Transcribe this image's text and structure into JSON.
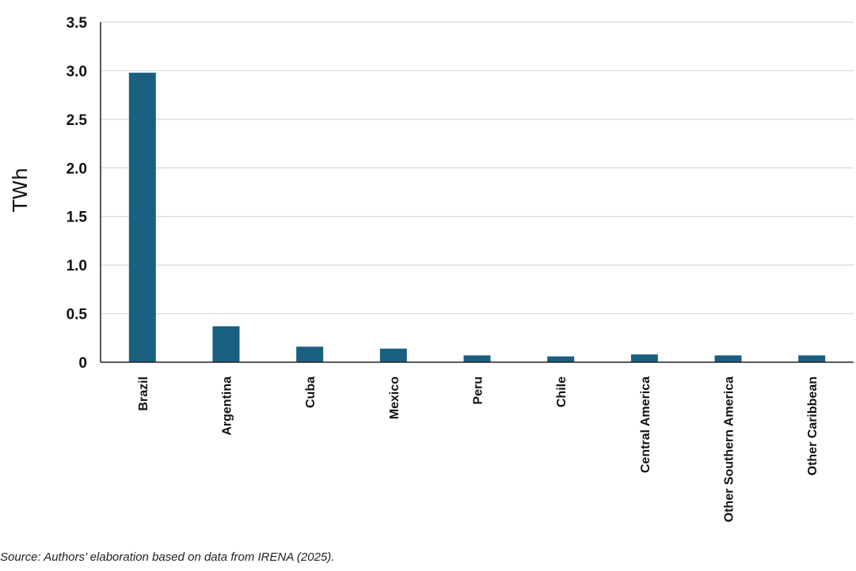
{
  "chart_data": {
    "type": "bar",
    "title": "",
    "xlabel": "",
    "ylabel": "TWh",
    "ylim": [
      0,
      3.5
    ],
    "yticks": [
      0,
      0.5,
      1.0,
      1.5,
      2.0,
      2.5,
      3.0,
      3.5
    ],
    "ytick_labels": [
      "0",
      "0.5",
      "1.0",
      "1.5",
      "2.0",
      "2.5",
      "3.0",
      "3.5"
    ],
    "grid": true,
    "bar_color": "#1b5f80",
    "categories": [
      "Brazil",
      "Argentina",
      "Cuba",
      "Mexico",
      "Peru",
      "Chile",
      "Central America",
      "Other Southern America",
      "Other Caribbean"
    ],
    "values": [
      2.98,
      0.37,
      0.16,
      0.14,
      0.07,
      0.06,
      0.08,
      0.07,
      0.07
    ]
  },
  "source": "Source: Authors’ elaboration based on data from IRENA (2025)."
}
